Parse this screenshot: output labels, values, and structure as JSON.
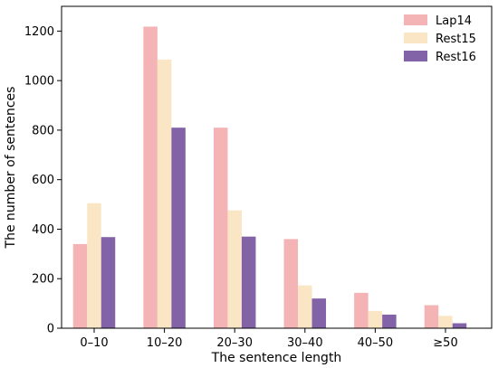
{
  "chart_data": {
    "type": "bar",
    "title": "",
    "xlabel": "The sentence length",
    "ylabel": "The number of sentences",
    "categories": [
      "0–10",
      "10–20",
      "20–30",
      "30–40",
      "40–50",
      "≥50"
    ],
    "series": [
      {
        "name": "Lap14",
        "color": "#f4b3b4",
        "values": [
          340,
          1218,
          810,
          360,
          143,
          93
        ]
      },
      {
        "name": "Rest15",
        "color": "#fae5c5",
        "values": [
          505,
          1085,
          476,
          173,
          70,
          50
        ]
      },
      {
        "name": "Rest16",
        "color": "#8263a8",
        "values": [
          368,
          810,
          370,
          120,
          55,
          20
        ]
      }
    ],
    "ylim": [
      0,
      1300
    ],
    "yticks": [
      0,
      200,
      400,
      600,
      800,
      1000,
      1200
    ],
    "legend_position": "top-right",
    "grid": false
  }
}
